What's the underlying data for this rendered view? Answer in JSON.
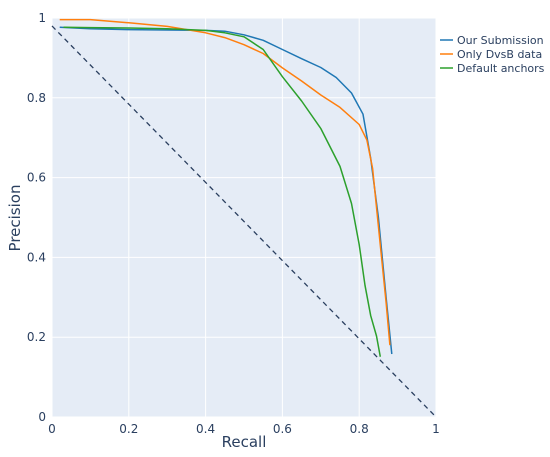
{
  "chart_data": {
    "type": "line",
    "title": "",
    "xlabel": "Recall",
    "ylabel": "Precision",
    "xlim": [
      0,
      1
    ],
    "ylim": [
      0,
      1
    ],
    "x_ticks": [
      "0",
      "0.2",
      "0.4",
      "0.6",
      "0.8",
      "1"
    ],
    "y_ticks": [
      "0",
      "0.2",
      "0.4",
      "0.6",
      "0.8",
      "1"
    ],
    "grid": true,
    "legend_position": "top-right-outside",
    "reference_line": {
      "style": "dashed",
      "color": "#2a3f5f",
      "x": [
        0,
        1
      ],
      "y": [
        0.98,
        0
      ]
    },
    "series": [
      {
        "name": "Our Submission",
        "color": "#1f77b4",
        "x": [
          0.02,
          0.1,
          0.2,
          0.3,
          0.4,
          0.45,
          0.5,
          0.55,
          0.6,
          0.65,
          0.7,
          0.74,
          0.78,
          0.81,
          0.83,
          0.85,
          0.87,
          0.885
        ],
        "y": [
          0.977,
          0.973,
          0.971,
          0.97,
          0.969,
          0.967,
          0.958,
          0.944,
          0.921,
          0.898,
          0.876,
          0.851,
          0.812,
          0.759,
          0.648,
          0.5,
          0.3,
          0.158
        ]
      },
      {
        "name": "Only DvsB data",
        "color": "#ff7f0e",
        "x": [
          0.02,
          0.1,
          0.2,
          0.3,
          0.4,
          0.45,
          0.5,
          0.55,
          0.6,
          0.65,
          0.7,
          0.75,
          0.8,
          0.82,
          0.835,
          0.85,
          0.87,
          0.88
        ],
        "y": [
          0.996,
          0.996,
          0.988,
          0.979,
          0.963,
          0.951,
          0.933,
          0.911,
          0.875,
          0.842,
          0.807,
          0.776,
          0.733,
          0.694,
          0.623,
          0.478,
          0.287,
          0.18
        ]
      },
      {
        "name": "Default anchors",
        "color": "#2ca02c",
        "x": [
          0.03,
          0.1,
          0.2,
          0.3,
          0.4,
          0.45,
          0.5,
          0.55,
          0.6,
          0.65,
          0.7,
          0.75,
          0.78,
          0.8,
          0.815,
          0.83,
          0.845,
          0.855
        ],
        "y": [
          0.977,
          0.976,
          0.975,
          0.973,
          0.969,
          0.963,
          0.953,
          0.921,
          0.853,
          0.792,
          0.723,
          0.628,
          0.535,
          0.432,
          0.33,
          0.254,
          0.203,
          0.151
        ]
      }
    ]
  }
}
